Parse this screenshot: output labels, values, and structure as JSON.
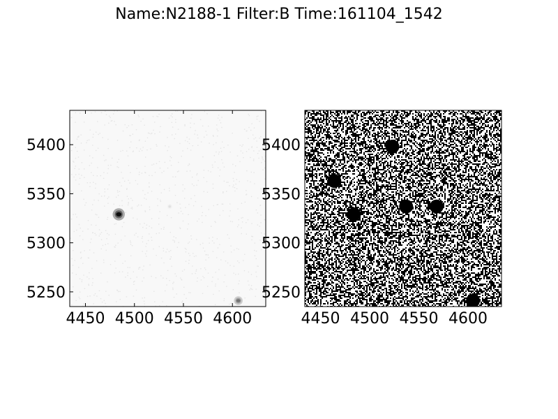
{
  "figure": {
    "title": "Name:N2188-1 Filter:B Time:161104_1542"
  },
  "chart_data": [
    {
      "type": "heatmap",
      "panel": "left",
      "colormap": "gray_r",
      "xlim": [
        4434,
        4634
      ],
      "ylim": [
        5235,
        5435
      ],
      "xticks": [
        4450,
        4500,
        4550,
        4600
      ],
      "yticks": [
        5250,
        5300,
        5350,
        5400
      ],
      "grid": false,
      "sources": [
        {
          "x": 4484,
          "y": 5329,
          "peak": 0.95
        },
        {
          "x": 4536,
          "y": 5337,
          "peak": 0.12
        },
        {
          "x": 4606,
          "y": 5241,
          "peak": 0.55
        }
      ]
    },
    {
      "type": "heatmap",
      "panel": "right",
      "colormap": "binary (high-contrast stretch)",
      "xlim": [
        4434,
        4634
      ],
      "ylim": [
        5235,
        5435
      ],
      "xticks": [
        4450,
        4500,
        4550,
        4600
      ],
      "yticks": [
        5250,
        5300,
        5350,
        5400
      ],
      "grid": false,
      "sources": [
        {
          "x": 4484,
          "y": 5329
        },
        {
          "x": 4537,
          "y": 5337
        },
        {
          "x": 4605,
          "y": 5241
        },
        {
          "x": 4464,
          "y": 5363
        },
        {
          "x": 4568,
          "y": 5337
        },
        {
          "x": 4523,
          "y": 5398
        }
      ]
    }
  ]
}
